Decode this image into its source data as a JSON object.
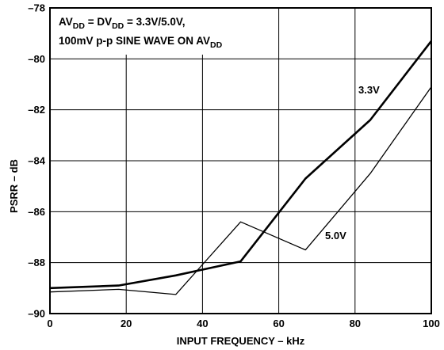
{
  "chart_data": {
    "type": "line",
    "xlabel": "INPUT FREQUENCY – kHz",
    "ylabel": "PSRR – dB",
    "xlim": [
      0,
      100
    ],
    "ylim": [
      -90,
      -78
    ],
    "x_ticks": [
      0,
      20,
      40,
      60,
      80,
      100
    ],
    "y_ticks": [
      -90,
      -88,
      -86,
      -84,
      -82,
      -80,
      -78
    ],
    "x_tick_labels": [
      "0",
      "20",
      "40",
      "60",
      "80",
      "100"
    ],
    "y_tick_labels": [
      "–90",
      "–88",
      "–86",
      "–84",
      "–82",
      "–80",
      "–78"
    ],
    "grid": true,
    "annotation": {
      "line1": {
        "p1": "AV",
        "s1": "DD",
        "p2": " = DV",
        "s2": "DD",
        "p3": " = 3.3V/5.0V,"
      },
      "line2": {
        "p1": "100mV p-p SINE WAVE ON AV",
        "s1": "DD"
      }
    },
    "series": [
      {
        "name": "3.3V",
        "x": [
          0,
          18,
          33,
          50,
          67,
          84,
          100
        ],
        "y": [
          -89.0,
          -88.9,
          -88.5,
          -87.95,
          -84.7,
          -82.4,
          -79.3
        ],
        "stroke": "#000000",
        "width": "heavy"
      },
      {
        "name": "5.0V",
        "x": [
          0,
          18,
          33,
          50,
          67,
          84,
          100
        ],
        "y": [
          -89.15,
          -89.05,
          -89.25,
          -86.4,
          -87.5,
          -84.5,
          -81.1
        ],
        "stroke": "#000000",
        "width": "light"
      }
    ]
  }
}
